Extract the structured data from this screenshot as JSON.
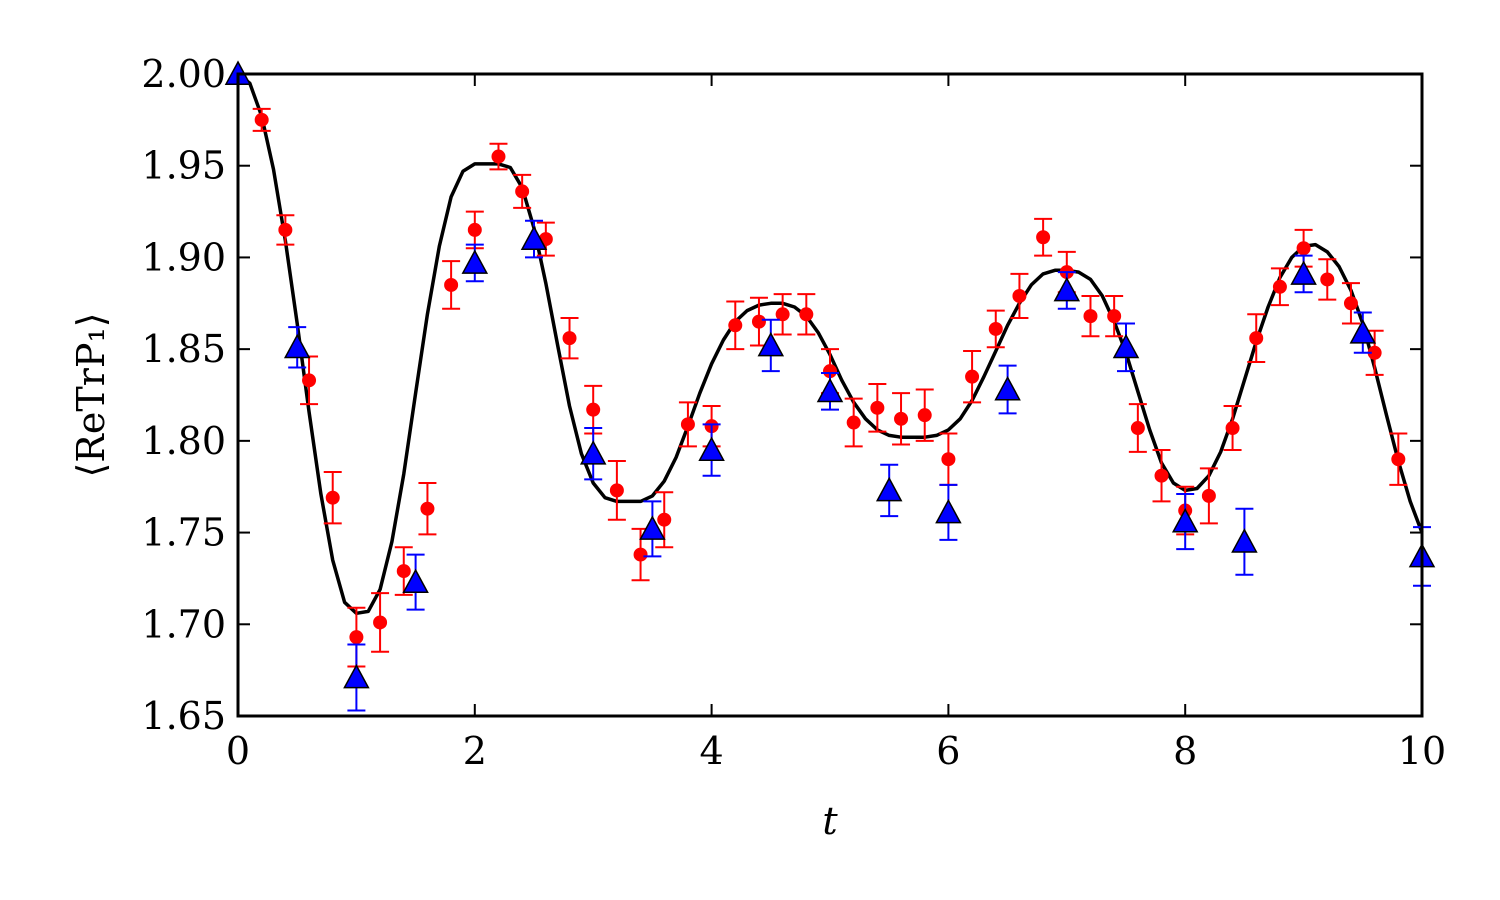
{
  "chart_data": {
    "type": "scatter",
    "xlabel": "t",
    "ylabel": "⟨ReTrP₁⟩",
    "xlim": [
      0,
      10
    ],
    "ylim": [
      1.65,
      2.0
    ],
    "xticks": [
      0,
      2,
      4,
      6,
      8,
      10
    ],
    "xtick_labels": [
      "0",
      "2",
      "4",
      "6",
      "8",
      "10"
    ],
    "yticks": [
      1.65,
      1.7,
      1.75,
      1.8,
      1.85,
      1.9,
      1.95,
      2.0
    ],
    "ytick_labels": [
      "1.65",
      "1.70",
      "1.75",
      "1.80",
      "1.85",
      "1.90",
      "1.95",
      "2.00"
    ],
    "grid": false,
    "legend": "none",
    "series": [
      {
        "style": "line",
        "color": "#000000",
        "x": [
          0,
          0.1,
          0.2,
          0.3,
          0.4,
          0.5,
          0.6,
          0.7,
          0.8,
          0.9,
          1.0,
          1.1,
          1.2,
          1.3,
          1.4,
          1.5,
          1.6,
          1.7,
          1.8,
          1.9,
          2.0,
          2.1,
          2.2,
          2.3,
          2.4,
          2.5,
          2.6,
          2.7,
          2.8,
          2.9,
          3.0,
          3.1,
          3.2,
          3.3,
          3.4,
          3.5,
          3.6,
          3.7,
          3.8,
          3.9,
          4.0,
          4.1,
          4.2,
          4.3,
          4.4,
          4.5,
          4.6,
          4.7,
          4.8,
          4.9,
          5.0,
          5.1,
          5.2,
          5.3,
          5.4,
          5.5,
          5.6,
          5.7,
          5.8,
          5.9,
          6.0,
          6.1,
          6.2,
          6.3,
          6.4,
          6.5,
          6.6,
          6.7,
          6.8,
          6.9,
          7.0,
          7.1,
          7.2,
          7.3,
          7.4,
          7.5,
          7.6,
          7.7,
          7.8,
          7.9,
          8.0,
          8.1,
          8.2,
          8.3,
          8.4,
          8.5,
          8.6,
          8.7,
          8.8,
          8.9,
          9.0,
          9.1,
          9.2,
          9.3,
          9.4,
          9.5,
          9.6,
          9.7,
          9.8,
          9.9,
          10.0
        ],
        "y": [
          2.0,
          1.995,
          1.977,
          1.948,
          1.909,
          1.864,
          1.816,
          1.771,
          1.735,
          1.712,
          1.706,
          1.707,
          1.719,
          1.745,
          1.782,
          1.826,
          1.869,
          1.906,
          1.933,
          1.947,
          1.951,
          1.951,
          1.951,
          1.949,
          1.938,
          1.916,
          1.886,
          1.852,
          1.819,
          1.793,
          1.777,
          1.769,
          1.767,
          1.767,
          1.767,
          1.77,
          1.778,
          1.791,
          1.808,
          1.826,
          1.842,
          1.855,
          1.865,
          1.871,
          1.874,
          1.875,
          1.875,
          1.873,
          1.868,
          1.859,
          1.847,
          1.833,
          1.821,
          1.812,
          1.806,
          1.803,
          1.802,
          1.802,
          1.802,
          1.803,
          1.806,
          1.812,
          1.822,
          1.835,
          1.849,
          1.863,
          1.875,
          1.885,
          1.891,
          1.893,
          1.893,
          1.892,
          1.888,
          1.879,
          1.865,
          1.848,
          1.827,
          1.806,
          1.788,
          1.777,
          1.773,
          1.774,
          1.781,
          1.794,
          1.812,
          1.833,
          1.854,
          1.873,
          1.889,
          1.9,
          1.906,
          1.907,
          1.903,
          1.895,
          1.882,
          1.864,
          1.84,
          1.814,
          1.789,
          1.767,
          1.75
        ]
      },
      {
        "style": "circle-errorbar",
        "color": "#ff0000",
        "x": [
          0.2,
          0.4,
          0.6,
          0.8,
          1.0,
          1.2,
          1.4,
          1.6,
          1.8,
          2.0,
          2.2,
          2.4,
          2.6,
          2.8,
          3.0,
          3.2,
          3.4,
          3.6,
          3.8,
          4.0,
          4.2,
          4.4,
          4.6,
          4.8,
          5.0,
          5.2,
          5.4,
          5.6,
          5.8,
          6.0,
          6.2,
          6.4,
          6.6,
          6.8,
          7.0,
          7.2,
          7.4,
          7.6,
          7.8,
          8.0,
          8.2,
          8.4,
          8.6,
          8.8,
          9.0,
          9.2,
          9.4,
          9.6,
          9.8
        ],
        "y": [
          1.975,
          1.915,
          1.833,
          1.769,
          1.693,
          1.701,
          1.729,
          1.763,
          1.885,
          1.915,
          1.955,
          1.936,
          1.91,
          1.856,
          1.817,
          1.773,
          1.738,
          1.757,
          1.809,
          1.808,
          1.863,
          1.865,
          1.869,
          1.869,
          1.838,
          1.81,
          1.818,
          1.812,
          1.814,
          1.79,
          1.835,
          1.861,
          1.879,
          1.911,
          1.892,
          1.868,
          1.868,
          1.807,
          1.781,
          1.762,
          1.77,
          1.807,
          1.856,
          1.884,
          1.905,
          1.888,
          1.875,
          1.848,
          1.79
        ],
        "err": [
          0.006,
          0.008,
          0.013,
          0.014,
          0.016,
          0.016,
          0.013,
          0.014,
          0.013,
          0.01,
          0.007,
          0.009,
          0.009,
          0.011,
          0.013,
          0.016,
          0.014,
          0.015,
          0.012,
          0.011,
          0.013,
          0.013,
          0.011,
          0.011,
          0.012,
          0.013,
          0.013,
          0.014,
          0.014,
          0.014,
          0.014,
          0.01,
          0.012,
          0.01,
          0.011,
          0.011,
          0.011,
          0.013,
          0.014,
          0.013,
          0.015,
          0.012,
          0.013,
          0.01,
          0.01,
          0.011,
          0.011,
          0.012,
          0.014
        ]
      },
      {
        "style": "triangle-errorbar",
        "color": "#0000ff",
        "x": [
          0,
          0.5,
          1.0,
          1.5,
          2.0,
          2.5,
          3.0,
          3.5,
          4.0,
          4.5,
          5.0,
          5.5,
          6.0,
          6.5,
          7.0,
          7.5,
          8.0,
          8.5,
          9.0,
          9.5,
          10.0
        ],
        "y": [
          2.0,
          1.851,
          1.671,
          1.723,
          1.897,
          1.91,
          1.793,
          1.752,
          1.795,
          1.852,
          1.827,
          1.773,
          1.761,
          1.828,
          1.882,
          1.851,
          1.756,
          1.745,
          1.891,
          1.859,
          1.737
        ],
        "err": [
          0.0,
          0.011,
          0.018,
          0.015,
          0.01,
          0.01,
          0.014,
          0.015,
          0.014,
          0.014,
          0.01,
          0.014,
          0.015,
          0.013,
          0.01,
          0.013,
          0.015,
          0.018,
          0.01,
          0.011,
          0.016
        ]
      }
    ]
  }
}
